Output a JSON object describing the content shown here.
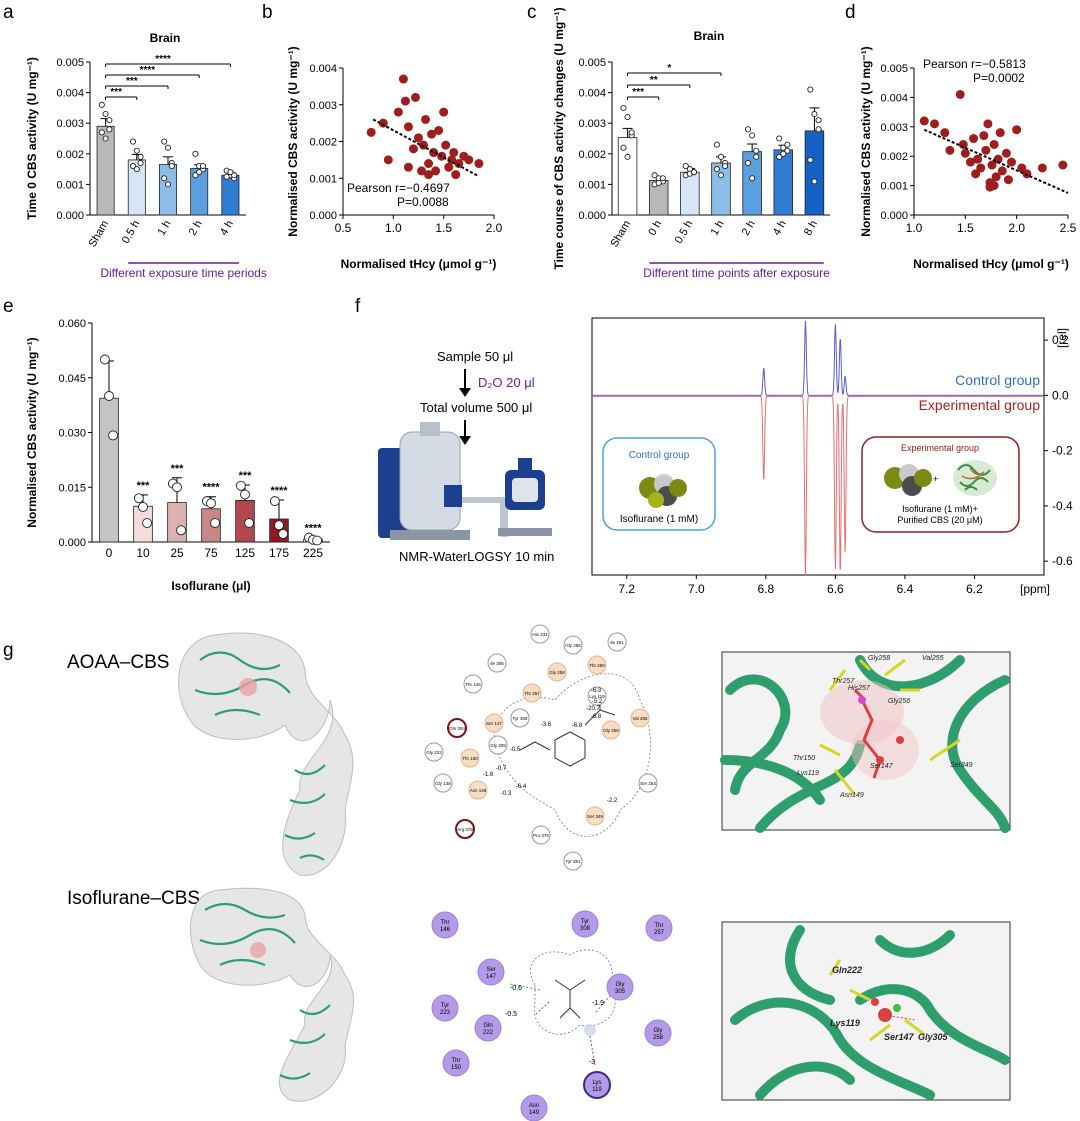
{
  "panels": {
    "a": "a",
    "b": "b",
    "c": "c",
    "d": "d",
    "e": "e",
    "f": "f",
    "g": "g"
  },
  "colors": {
    "sham": "#b8b8b8",
    "blue_light": "#d6e6f7",
    "blue_mid": "#8cbde8",
    "blue_2": "#5aa0df",
    "blue_3": "#2f7ed4",
    "blue_dark": "#1661c6",
    "dot_red": "#a01d1d",
    "purple": "#6a1b9a",
    "nmr_blue": "#5a5ad6",
    "nmr_red": "#e87070",
    "protein_green": "#2f9e6d",
    "pill_purple": "#b49ae8"
  },
  "chart_data": [
    {
      "id": "a",
      "type": "bar",
      "title": "Brain",
      "ylabel": "Time 0 CBS activity (U mg⁻¹)",
      "categories": [
        "Sham",
        "0.5 h",
        "1 h",
        "2 h",
        "4 h"
      ],
      "values": [
        0.0029,
        0.0018,
        0.00165,
        0.00152,
        0.0013
      ],
      "errors": [
        0.00025,
        0.00018,
        0.00025,
        0.00012,
        8e-05
      ],
      "colors": [
        "#b8b8b8",
        "#d6e6f7",
        "#8cbde8",
        "#5aa0df",
        "#2f7ed4"
      ],
      "ylim": [
        0,
        0.005
      ],
      "yticks": [
        "0.000",
        "0.001",
        "0.002",
        "0.003",
        "0.004",
        "0.005"
      ],
      "points": [
        [
          0.0036,
          0.0033,
          0.0028,
          0.0027,
          0.0025,
          0.0031
        ],
        [
          0.0024,
          0.0021,
          0.0017,
          0.0016,
          0.0015,
          0.0019
        ],
        [
          0.0024,
          0.0022,
          0.0017,
          0.0012,
          0.001,
          0.0016
        ],
        [
          0.002,
          0.0016,
          0.0015,
          0.0013,
          0.0014,
          0.0016
        ],
        [
          0.00145,
          0.0013,
          0.0012,
          0.00125,
          0.0014,
          0.0013
        ]
      ],
      "significance": [
        {
          "to": 1,
          "label": "***"
        },
        {
          "to": 2,
          "label": "***"
        },
        {
          "to": 3,
          "label": "****"
        },
        {
          "to": 4,
          "label": "****"
        }
      ],
      "bracket_text": "Different exposure time periods"
    },
    {
      "id": "b",
      "type": "scatter",
      "xlabel": "Normalised tHcy (μmol g⁻¹)",
      "ylabel": "Normalised CBS activity (U mg⁻¹)",
      "xlim": [
        0.5,
        2.0
      ],
      "ylim": [
        0,
        0.004
      ],
      "xticks": [
        "0.5",
        "1.0",
        "1.5",
        "2.0"
      ],
      "yticks": [
        "0.000",
        "0.001",
        "0.002",
        "0.003",
        "0.004"
      ],
      "points": [
        [
          0.78,
          0.00225
        ],
        [
          0.9,
          0.0025
        ],
        [
          0.95,
          0.0015
        ],
        [
          1.05,
          0.0028
        ],
        [
          1.1,
          0.0037
        ],
        [
          1.12,
          0.0031
        ],
        [
          1.15,
          0.0024
        ],
        [
          1.2,
          0.0018
        ],
        [
          1.22,
          0.0032
        ],
        [
          1.25,
          0.0021
        ],
        [
          1.3,
          0.0019
        ],
        [
          1.32,
          0.0026
        ],
        [
          1.35,
          0.0014
        ],
        [
          1.38,
          0.0022
        ],
        [
          1.4,
          0.0017
        ],
        [
          1.42,
          0.0012
        ],
        [
          1.45,
          0.0023
        ],
        [
          1.48,
          0.0016
        ],
        [
          1.5,
          0.0028
        ],
        [
          1.52,
          0.0019
        ],
        [
          1.55,
          0.0013
        ],
        [
          1.58,
          0.0015
        ],
        [
          1.6,
          0.0017
        ],
        [
          1.62,
          0.0011
        ],
        [
          1.65,
          0.0014
        ],
        [
          1.7,
          0.0016
        ],
        [
          1.75,
          0.0015
        ],
        [
          1.85,
          0.0014
        ],
        [
          1.15,
          0.0013
        ],
        [
          1.28,
          0.0012
        ],
        [
          1.35,
          0.0011
        ]
      ],
      "trend": [
        [
          0.8,
          0.0026
        ],
        [
          1.85,
          0.00105
        ]
      ],
      "stat_r": "Pearson r=−0.4697",
      "stat_p": "P=0.0088"
    },
    {
      "id": "c",
      "type": "bar",
      "title": "Brain",
      "ylabel": "Time course of CBS activity changes (U mg⁻¹)",
      "categories": [
        "Sham",
        "0 h",
        "0.5 h",
        "1 h",
        "2 h",
        "4 h",
        "8 h"
      ],
      "values": [
        0.00253,
        0.00113,
        0.0014,
        0.0017,
        0.00207,
        0.00213,
        0.00275
      ],
      "errors": [
        0.0003,
        0.0001,
        0.00012,
        0.0002,
        0.00025,
        0.00015,
        0.00075
      ],
      "colors": [
        "#ffffff",
        "#b8b8b8",
        "#d6e6f7",
        "#8cbde8",
        "#5aa0df",
        "#2f7ed4",
        "#1661c6"
      ],
      "ylim": [
        0,
        0.005
      ],
      "yticks": [
        "0.000",
        "0.001",
        "0.002",
        "0.003",
        "0.004",
        "0.005"
      ],
      "points": [
        [
          0.0035,
          0.0032,
          0.0026,
          0.0022,
          0.0019,
          0.0027
        ],
        [
          0.0013,
          0.0012,
          0.0011,
          0.001,
          0.00105,
          0.0012
        ],
        [
          0.0016,
          0.0015,
          0.0014,
          0.0013,
          0.00135,
          0.0014
        ],
        [
          0.0023,
          0.0019,
          0.0017,
          0.0015,
          0.0013,
          0.0016
        ],
        [
          0.0028,
          0.0026,
          0.0021,
          0.0017,
          0.0012,
          0.0019
        ],
        [
          0.0025,
          0.0022,
          0.0021,
          0.0019,
          0.002,
          0.0023
        ],
        [
          0.0041,
          0.0033,
          0.0028,
          0.0018,
          0.0011,
          0.0031
        ]
      ],
      "significance": [
        {
          "to": 1,
          "label": "***"
        },
        {
          "to": 2,
          "label": "**"
        },
        {
          "to": 3,
          "label": "*"
        }
      ],
      "bracket_text": "Different time points after exposure"
    },
    {
      "id": "d",
      "type": "scatter",
      "xlabel": "Normalised tHcy (μmol g⁻¹)",
      "ylabel": "Normalised CBS activity (U mg⁻¹)",
      "xlim": [
        1.0,
        2.5
      ],
      "ylim": [
        0,
        0.005
      ],
      "xticks": [
        "1.0",
        "1.5",
        "2.0",
        "2.5"
      ],
      "yticks": [
        "0.000",
        "0.001",
        "0.002",
        "0.003",
        "0.004",
        "0.005"
      ],
      "points": [
        [
          1.1,
          0.0032
        ],
        [
          1.2,
          0.0031
        ],
        [
          1.3,
          0.0028
        ],
        [
          1.35,
          0.0022
        ],
        [
          1.45,
          0.0041
        ],
        [
          1.48,
          0.0024
        ],
        [
          1.5,
          0.0021
        ],
        [
          1.55,
          0.0018
        ],
        [
          1.58,
          0.0026
        ],
        [
          1.6,
          0.0014
        ],
        [
          1.62,
          0.0019
        ],
        [
          1.65,
          0.0016
        ],
        [
          1.68,
          0.0027
        ],
        [
          1.7,
          0.0022
        ],
        [
          1.72,
          0.0031
        ],
        [
          1.74,
          0.0011
        ],
        [
          1.76,
          0.0017
        ],
        [
          1.78,
          0.0024
        ],
        [
          1.8,
          0.0013
        ],
        [
          1.82,
          0.0019
        ],
        [
          1.84,
          0.0028
        ],
        [
          1.86,
          0.0015
        ],
        [
          1.9,
          0.0021
        ],
        [
          1.92,
          0.0012
        ],
        [
          1.95,
          0.0018
        ],
        [
          2.0,
          0.0029
        ],
        [
          2.05,
          0.0016
        ],
        [
          2.1,
          0.0014
        ],
        [
          2.25,
          0.0016
        ],
        [
          2.45,
          0.0017
        ],
        [
          1.74,
          0.00095
        ],
        [
          1.78,
          0.001
        ]
      ],
      "trend": [
        [
          1.1,
          0.0029
        ],
        [
          2.5,
          0.00075
        ]
      ],
      "stat_r": "Pearson r=−0.5813",
      "stat_p": "P=0.0002"
    },
    {
      "id": "e",
      "type": "bar",
      "ylabel": "Normalised CBS activity (U mg⁻¹)",
      "xlabel": "Isoflurane (μl)",
      "categories": [
        "0",
        "10",
        "25",
        "75",
        "125",
        "175",
        "225"
      ],
      "values": [
        0.0394,
        0.0098,
        0.0108,
        0.0091,
        0.0114,
        0.0063,
        0.0008
      ],
      "errors": [
        0.0102,
        0.0031,
        0.0068,
        0.0033,
        0.0042,
        0.0052,
        0.0005
      ],
      "colors": [
        "#c4c4c4",
        "#f4dcdc",
        "#dbb0b0",
        "#c98686",
        "#b2484f",
        "#8e1b24",
        "#ffffff"
      ],
      "ylim": [
        0,
        0.06
      ],
      "yticks": [
        "0.000",
        "0.015",
        "0.030",
        "0.045",
        "0.060"
      ],
      "points": [
        [
          0.05,
          0.04,
          0.0292
        ],
        [
          0.012,
          0.0096,
          0.0052
        ],
        [
          0.016,
          0.015,
          0.0032
        ],
        [
          0.0112,
          0.0106,
          0.0052
        ],
        [
          0.0154,
          0.013,
          0.0052
        ],
        [
          0.0112,
          0.0046,
          0.0022
        ],
        [
          0.0012,
          0.0006,
          0.0004
        ]
      ],
      "significance_labels": [
        "",
        "***",
        "***",
        "****",
        "***",
        "****",
        "****"
      ]
    },
    {
      "id": "f",
      "type": "line",
      "xlabel": "[ppm]",
      "ylabel": "[rel]",
      "xlim": [
        7.3,
        6.0
      ],
      "ylim": [
        -0.65,
        0.28
      ],
      "xticks": [
        "7.2",
        "7.0",
        "6.8",
        "6.6",
        "6.4",
        "6.2"
      ],
      "yticks": [
        "0.2",
        "0.0",
        "-0.2",
        "-0.4",
        "-0.6"
      ],
      "series": [
        {
          "name": "Control group",
          "color": "#5a5ad6",
          "peaks": [
            [
              6.806,
              0.1
            ],
            [
              6.686,
              0.27
            ],
            [
              6.6,
              0.26
            ],
            [
              6.586,
              0.21
            ],
            [
              6.572,
              0.07
            ]
          ]
        },
        {
          "name": "Experimental group",
          "color": "#e87070",
          "peaks": [
            [
              6.806,
              -0.31
            ],
            [
              6.686,
              -0.65
            ],
            [
              6.6,
              -0.63
            ],
            [
              6.586,
              -0.65
            ],
            [
              6.572,
              -0.57
            ]
          ]
        }
      ]
    }
  ],
  "panel_f": {
    "sample": "Sample 50 μl",
    "d2o": "D₂O 20 μl",
    "total": "Total volume 500 μl",
    "method": "NMR-WaterLOGSY 10 min",
    "control_box_title": "Control group",
    "control_box_text": "Isoflurane (1 mM)",
    "exp_box_title": "Experimental group",
    "exp_box_text1": "Isoflurane (1 mM)+",
    "exp_box_text2": "Purified CBS (20 μM)",
    "legend_control": "Control group",
    "legend_exp": "Experimental group"
  },
  "panel_g": {
    "row1_label": "AOAA–CBS",
    "row2_label": "Isoflurane–CBS",
    "aoaa_residues": [
      {
        "t": "His 232"
      },
      {
        "t": "Gly 255"
      },
      {
        "t": "Ile 201"
      },
      {
        "t": "Ile 306"
      },
      {
        "t": "Thr 257"
      },
      {
        "t": "Gly 258"
      },
      {
        "t": "Thr 260"
      },
      {
        "t": "Thr 146"
      },
      {
        "t": "Tyr 308"
      },
      {
        "t": "Lys 119"
      },
      {
        "t": "Gln 304"
      },
      {
        "t": "Ser 147"
      },
      {
        "t": "Gly 256"
      },
      {
        "t": "Val 255"
      },
      {
        "t": "Gly 222"
      },
      {
        "t": "Gly 305"
      },
      {
        "t": "Thr 150"
      },
      {
        "t": "Gly 148"
      },
      {
        "t": "Asn 149"
      },
      {
        "t": "Ser 254"
      },
      {
        "t": "Ser 349"
      },
      {
        "t": "Arg 378"
      },
      {
        "t": "Pro 375"
      },
      {
        "t": "Tyr 381"
      }
    ],
    "aoaa_distances": [
      "-3.6",
      "-6.3",
      "-5.2",
      "-20.7",
      "-6.8",
      "-6.8",
      "-0.5",
      "-0.7",
      "-1.6",
      "-0.3",
      "-6.4",
      "-2.2"
    ],
    "iso_residues": [
      {
        "t1": "Thr",
        "t2": "146"
      },
      {
        "t1": "Tyr",
        "t2": "308"
      },
      {
        "t1": "Thr",
        "t2": "257"
      },
      {
        "t1": "Ser",
        "t2": "147"
      },
      {
        "t1": "Gly",
        "t2": "305"
      },
      {
        "t1": "Tyr",
        "t2": "223"
      },
      {
        "t1": "Gln",
        "t2": "222"
      },
      {
        "t1": "Gly",
        "t2": "258"
      },
      {
        "t1": "Thr",
        "t2": "150"
      },
      {
        "t1": "Lys",
        "t2": "119"
      },
      {
        "t1": "Asn",
        "t2": "149"
      }
    ],
    "iso_distances": [
      "-0.6",
      "-0.5",
      "-1.9",
      "-3"
    ],
    "render1_labels": [
      "Gly258",
      "Val255",
      "Thr257",
      "His257",
      "Gly256",
      "Thr150",
      "Lys119",
      "Ser147",
      "Asn149",
      "Ser349"
    ],
    "render2_labels": [
      "Gln222",
      "Lys119",
      "Ser147",
      "Gly305"
    ]
  }
}
